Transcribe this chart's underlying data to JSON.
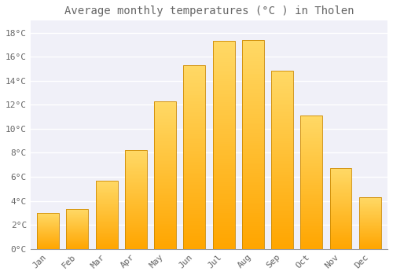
{
  "title": "Average monthly temperatures (°C ) in Tholen",
  "months": [
    "Jan",
    "Feb",
    "Mar",
    "Apr",
    "May",
    "Jun",
    "Jul",
    "Aug",
    "Sep",
    "Oct",
    "Nov",
    "Dec"
  ],
  "values": [
    3.0,
    3.3,
    5.7,
    8.2,
    12.3,
    15.3,
    17.3,
    17.4,
    14.8,
    11.1,
    6.7,
    4.3
  ],
  "bar_color_bottom": "#FFA500",
  "bar_color_top": "#FFD966",
  "bar_edge_color": "#CC8800",
  "background_color": "#FFFFFF",
  "plot_bg_color": "#F0F0F8",
  "grid_color": "#FFFFFF",
  "text_color": "#666666",
  "ylim": [
    0,
    19
  ],
  "yticks": [
    0,
    2,
    4,
    6,
    8,
    10,
    12,
    14,
    16,
    18
  ],
  "title_fontsize": 10,
  "tick_fontsize": 8,
  "bar_width": 0.75
}
